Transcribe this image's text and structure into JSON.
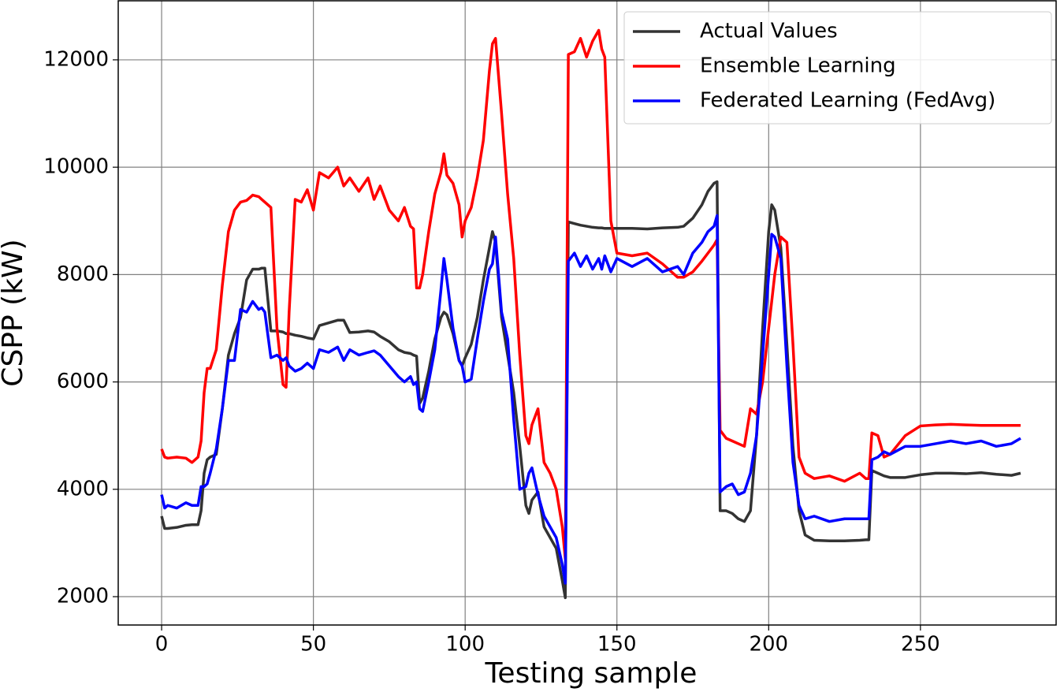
{
  "chart_data": {
    "type": "line",
    "x_label": "Testing sample",
    "y_label": "CSPP (kW)",
    "x": [
      0,
      1,
      2,
      5,
      8,
      10,
      12,
      13,
      14,
      15,
      16,
      18,
      20,
      22,
      24,
      26,
      28,
      30,
      32,
      33,
      34,
      36,
      38,
      40,
      41,
      42,
      44,
      46,
      48,
      50,
      52,
      55,
      58,
      60,
      62,
      65,
      68,
      70,
      72,
      75,
      78,
      80,
      82,
      83,
      84,
      85,
      86,
      88,
      90,
      92,
      93,
      94,
      96,
      98,
      99,
      100,
      102,
      104,
      106,
      108,
      109,
      110,
      112,
      114,
      116,
      118,
      120,
      121,
      122,
      124,
      126,
      128,
      130,
      132,
      133,
      134,
      136,
      138,
      140,
      142,
      144,
      145,
      146,
      148,
      150,
      155,
      160,
      165,
      170,
      172,
      175,
      178,
      180,
      182,
      183,
      184,
      186,
      188,
      190,
      192,
      194,
      196,
      198,
      200,
      201,
      202,
      204,
      206,
      208,
      210,
      212,
      215,
      220,
      225,
      230,
      232,
      233,
      234,
      236,
      238,
      240,
      245,
      250,
      255,
      260,
      265,
      270,
      275,
      280,
      283
    ],
    "series": [
      {
        "name": "Actual Values",
        "color": "#333333",
        "values": [
          3500,
          3270,
          3270,
          3290,
          3330,
          3340,
          3340,
          3600,
          4300,
          4550,
          4600,
          4650,
          5500,
          6500,
          6900,
          7200,
          7900,
          8100,
          8100,
          8120,
          8120,
          6950,
          6950,
          6930,
          6900,
          6900,
          6870,
          6850,
          6820,
          6800,
          7050,
          7100,
          7150,
          7150,
          6920,
          6930,
          6950,
          6930,
          6850,
          6750,
          6600,
          6550,
          6530,
          6500,
          6480,
          5600,
          5700,
          6200,
          6800,
          7200,
          7300,
          7250,
          6900,
          6400,
          6300,
          6450,
          6700,
          7200,
          7900,
          8500,
          8800,
          8600,
          7200,
          6500,
          5800,
          4800,
          3700,
          3550,
          3800,
          3950,
          3300,
          3100,
          2900,
          2300,
          1980,
          8980,
          8950,
          8920,
          8900,
          8880,
          8870,
          8870,
          8860,
          8860,
          8860,
          8860,
          8850,
          8870,
          8880,
          8900,
          9050,
          9300,
          9550,
          9700,
          9730,
          3600,
          3600,
          3550,
          3450,
          3400,
          3600,
          5000,
          7000,
          8800,
          9300,
          9200,
          8500,
          6700,
          4800,
          3600,
          3150,
          3050,
          3040,
          3040,
          3050,
          3060,
          3060,
          4350,
          4300,
          4250,
          4220,
          4220,
          4270,
          4300,
          4300,
          4290,
          4310,
          4280,
          4260,
          4300
        ]
      },
      {
        "name": "Ensemble Learning",
        "color": "#ff0000",
        "values": [
          4750,
          4600,
          4580,
          4600,
          4580,
          4500,
          4600,
          4900,
          5800,
          6250,
          6250,
          6600,
          7800,
          8800,
          9200,
          9350,
          9380,
          9480,
          9450,
          9400,
          9350,
          9250,
          7000,
          5950,
          5900,
          7300,
          9400,
          9350,
          9580,
          9200,
          9900,
          9800,
          10000,
          9650,
          9800,
          9550,
          9800,
          9400,
          9650,
          9200,
          9000,
          9250,
          8900,
          8850,
          7750,
          7750,
          8000,
          8800,
          9500,
          9900,
          10250,
          9850,
          9700,
          9300,
          8700,
          9000,
          9250,
          9800,
          10500,
          11800,
          12300,
          12400,
          11000,
          9500,
          8300,
          6500,
          5000,
          4850,
          5200,
          5500,
          4500,
          4300,
          4000,
          3300,
          2700,
          12100,
          12150,
          12400,
          12050,
          12350,
          12550,
          12200,
          12050,
          9000,
          8400,
          8350,
          8400,
          8200,
          7950,
          7950,
          8050,
          8250,
          8400,
          8550,
          8650,
          5100,
          4950,
          4900,
          4850,
          4800,
          5500,
          5400,
          6000,
          7000,
          7500,
          8000,
          8700,
          8600,
          6700,
          4600,
          4300,
          4200,
          4250,
          4150,
          4300,
          4200,
          4200,
          5050,
          5000,
          4600,
          4650,
          5000,
          5180,
          5200,
          5210,
          5200,
          5190,
          5190,
          5190,
          5190
        ]
      },
      {
        "name": "Federated Learning (FedAvg)",
        "color": "#0000ff",
        "values": [
          3900,
          3650,
          3700,
          3650,
          3750,
          3700,
          3700,
          4050,
          4050,
          4100,
          4300,
          4750,
          5500,
          6400,
          6400,
          7350,
          7300,
          7500,
          7350,
          7380,
          7300,
          6450,
          6500,
          6400,
          6450,
          6300,
          6200,
          6250,
          6350,
          6250,
          6600,
          6550,
          6650,
          6400,
          6600,
          6500,
          6550,
          6580,
          6500,
          6300,
          6100,
          6000,
          6100,
          5950,
          6000,
          5500,
          5450,
          6000,
          6600,
          7700,
          8300,
          7900,
          7000,
          6400,
          6300,
          6000,
          6050,
          6800,
          7500,
          8100,
          8200,
          8700,
          7300,
          6800,
          5300,
          4000,
          4050,
          4300,
          4400,
          3900,
          3500,
          3300,
          3100,
          2600,
          2250,
          8250,
          8400,
          8150,
          8350,
          8100,
          8300,
          8100,
          8350,
          8050,
          8300,
          8150,
          8300,
          8050,
          8150,
          8000,
          8400,
          8600,
          8800,
          8900,
          9100,
          3950,
          4050,
          4100,
          3900,
          3950,
          4300,
          5000,
          6500,
          8000,
          8750,
          8700,
          8300,
          6300,
          4500,
          3700,
          3450,
          3500,
          3400,
          3450,
          3450,
          3450,
          3450,
          4550,
          4600,
          4700,
          4650,
          4800,
          4800,
          4850,
          4900,
          4850,
          4900,
          4800,
          4850,
          4950
        ]
      }
    ],
    "xlim": [
      -14.3,
      294.7
    ],
    "ylim": [
      1472,
      13100
    ],
    "xticks": [
      0,
      50,
      100,
      150,
      200,
      250
    ],
    "yticks": [
      2000,
      4000,
      6000,
      8000,
      10000,
      12000
    ],
    "grid": true,
    "legend": "upper right"
  }
}
